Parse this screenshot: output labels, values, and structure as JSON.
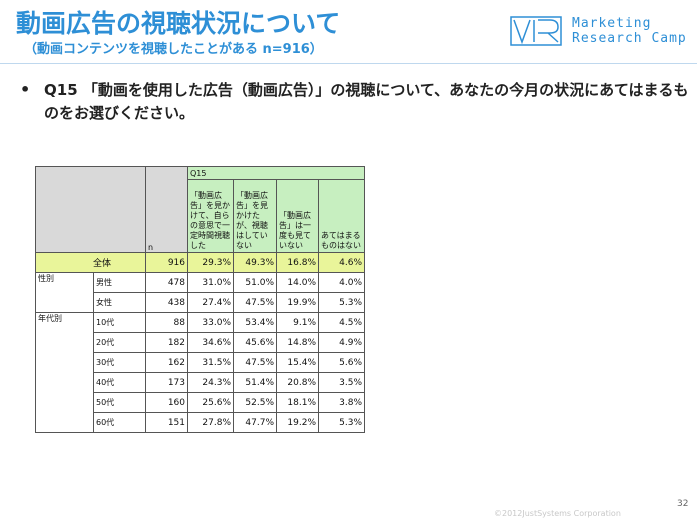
{
  "header": {
    "title": "動画広告の視聴状況について",
    "subtitle": "（動画コンテンツを視聴したことがある n=916）",
    "logo_line1": "Marketing",
    "logo_line2": "Research Camp"
  },
  "question": {
    "bullet": "•",
    "text": "Q15 「動画を使用した広告（動画広告）」の視聴について、あなたの今月の状況にあてはまるものをお選びください。"
  },
  "table": {
    "q_label": "Q15",
    "n_label": "n",
    "options": [
      "「動画広告」を見かけて、自らの意思で一定時間視聴した",
      "「動画広告」を見かけたが、視聴はしていない",
      "「動画広告」は一度も見ていない",
      "あてはまるものはない"
    ],
    "total": {
      "label": "全体",
      "n": "916",
      "values": [
        "29.3%",
        "49.3%",
        "16.8%",
        "4.6%"
      ]
    },
    "groups": [
      {
        "label": "性別",
        "rows": [
          {
            "label": "男性",
            "n": "478",
            "values": [
              "31.0%",
              "51.0%",
              "14.0%",
              "4.0%"
            ]
          },
          {
            "label": "女性",
            "n": "438",
            "values": [
              "27.4%",
              "47.5%",
              "19.9%",
              "5.3%"
            ]
          }
        ]
      },
      {
        "label": "年代別",
        "rows": [
          {
            "label": "10代",
            "n": "88",
            "values": [
              "33.0%",
              "53.4%",
              "9.1%",
              "4.5%"
            ]
          },
          {
            "label": "20代",
            "n": "182",
            "values": [
              "34.6%",
              "45.6%",
              "14.8%",
              "4.9%"
            ]
          },
          {
            "label": "30代",
            "n": "162",
            "values": [
              "31.5%",
              "47.5%",
              "15.4%",
              "5.6%"
            ]
          },
          {
            "label": "40代",
            "n": "173",
            "values": [
              "24.3%",
              "51.4%",
              "20.8%",
              "3.5%"
            ]
          },
          {
            "label": "50代",
            "n": "160",
            "values": [
              "25.6%",
              "52.5%",
              "18.1%",
              "3.8%"
            ]
          },
          {
            "label": "60代",
            "n": "151",
            "values": [
              "27.8%",
              "47.7%",
              "19.2%",
              "5.3%"
            ]
          }
        ]
      }
    ]
  },
  "footer": {
    "copyright": "©2012JustSystems Corporation",
    "page": "32"
  }
}
